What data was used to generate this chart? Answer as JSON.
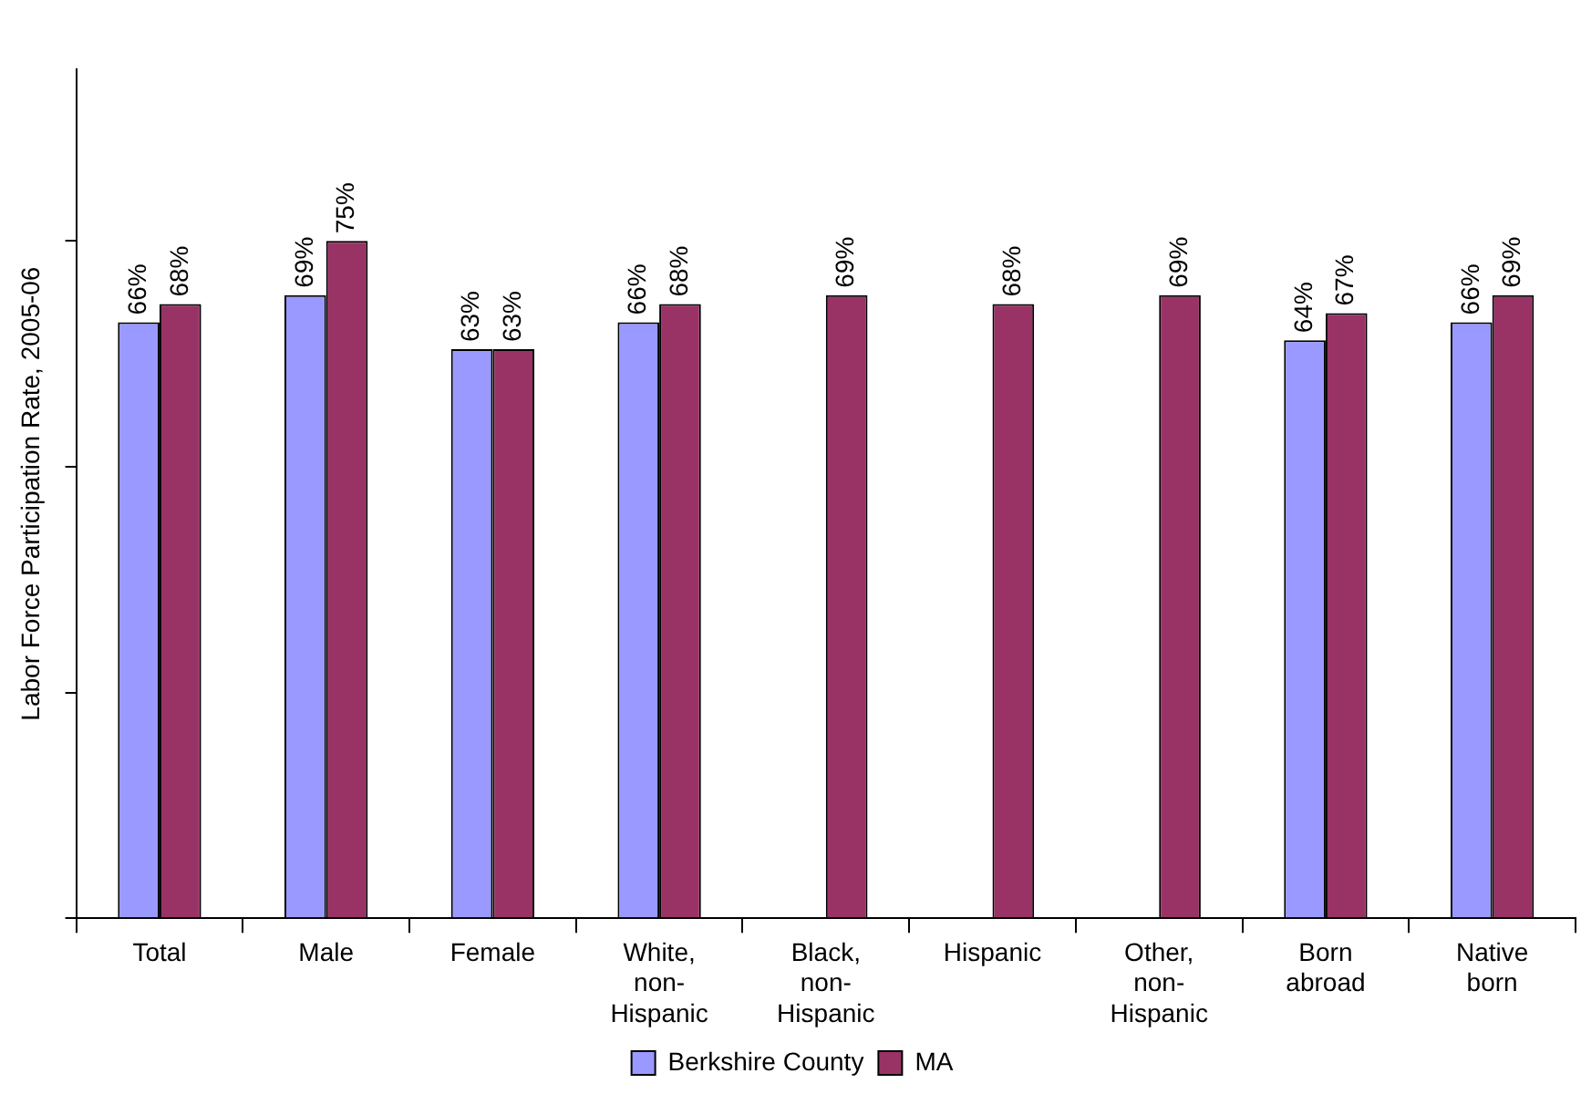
{
  "chart_data": {
    "type": "bar",
    "ylabel": "Labor Force Participation Rate, 2005-06",
    "categories": [
      "Total",
      "Male",
      "Female",
      "White, non-Hispanic",
      "Black, non-Hispanic",
      "Hispanic",
      "Other, non-Hispanic",
      "Born abroad",
      "Native born"
    ],
    "series": [
      {
        "name": "Berkshire County",
        "color": "#9999ff",
        "values": [
          66,
          69,
          63,
          66,
          null,
          null,
          null,
          64,
          66
        ],
        "value_labels": [
          "66%",
          "69%",
          "63%",
          "66%",
          null,
          null,
          null,
          "64%",
          "66%"
        ]
      },
      {
        "name": "MA",
        "color": "#993366",
        "values": [
          68,
          75,
          63,
          68,
          69,
          68,
          69,
          67,
          69
        ],
        "value_labels": [
          "68%",
          "75%",
          "63%",
          "68%",
          "69%",
          "68%",
          "69%",
          "67%",
          "69%"
        ]
      }
    ],
    "ylim": [
      0,
      94
    ],
    "yticks": [
      {
        "value": 0,
        "label": null
      },
      {
        "value": 25,
        "label": null
      },
      {
        "value": 50,
        "label": null
      },
      {
        "value": 75,
        "label": null
      }
    ],
    "tick_labels": "x",
    "grid": false,
    "legend": "bottom"
  }
}
